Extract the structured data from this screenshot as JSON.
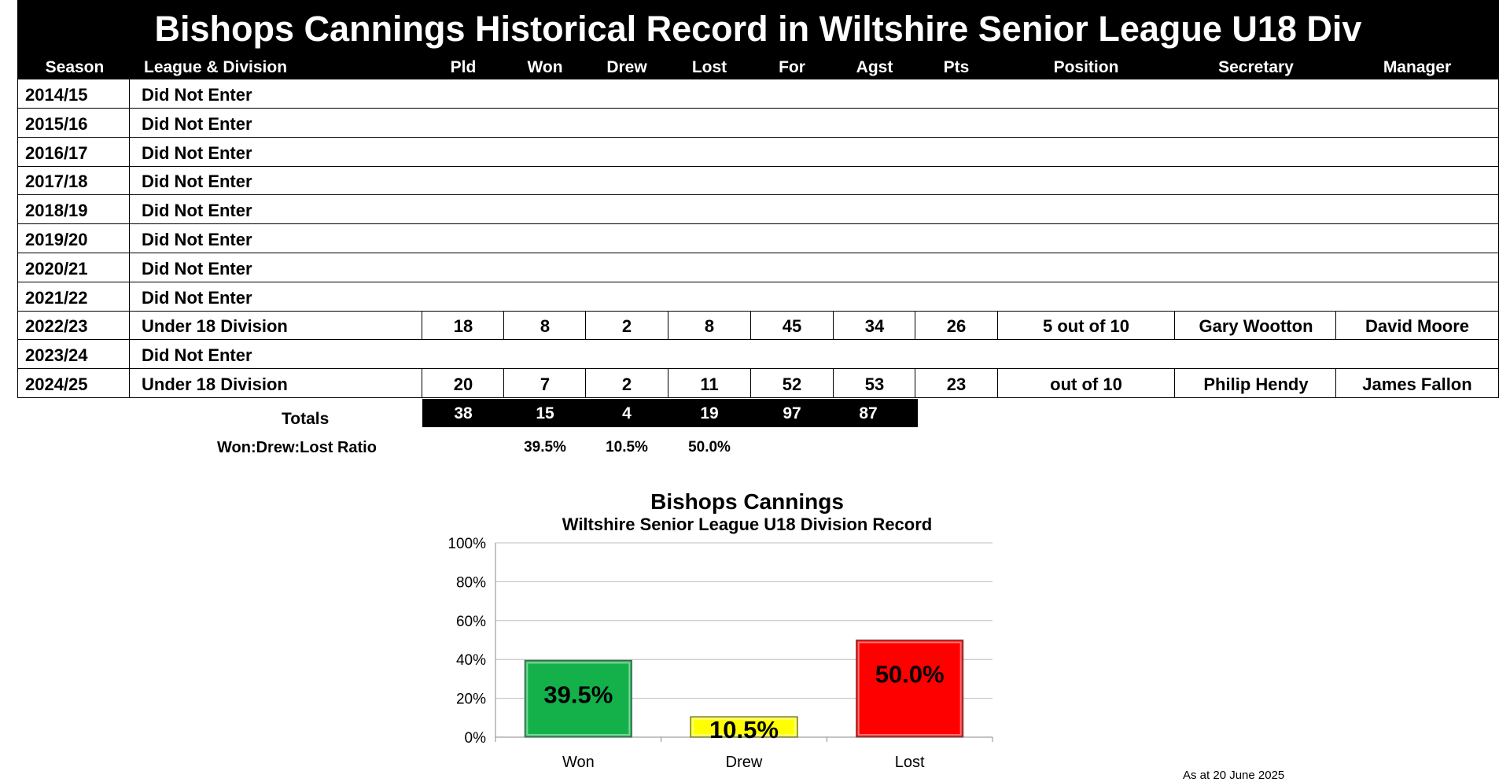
{
  "title": "Bishops Cannings Historical Record in Wiltshire Senior League U18 Div",
  "headers": {
    "season": "Season",
    "league": "League & Division",
    "pld": "Pld",
    "won": "Won",
    "drew": "Drew",
    "lost": "Lost",
    "for": "For",
    "agst": "Agst",
    "pts": "Pts",
    "position": "Position",
    "secretary": "Secretary",
    "manager": "Manager"
  },
  "rows": [
    {
      "season": "2014/15",
      "league": "Did Not Enter"
    },
    {
      "season": "2015/16",
      "league": "Did Not Enter"
    },
    {
      "season": "2016/17",
      "league": "Did Not Enter"
    },
    {
      "season": "2017/18",
      "league": "Did Not Enter"
    },
    {
      "season": "2018/19",
      "league": "Did Not Enter"
    },
    {
      "season": "2019/20",
      "league": "Did Not Enter"
    },
    {
      "season": "2020/21",
      "league": "Did Not Enter"
    },
    {
      "season": "2021/22",
      "league": "Did Not Enter"
    },
    {
      "season": "2022/23",
      "league": "Under 18 Division",
      "pld": "18",
      "won": "8",
      "drew": "2",
      "lost": "8",
      "for": "45",
      "agst": "34",
      "pts": "26",
      "position": "5 out of   10",
      "secretary": "Gary Wootton",
      "manager": "David Moore"
    },
    {
      "season": "2023/24",
      "league": "Did Not Enter"
    },
    {
      "season": "2024/25",
      "league": "Under 18 Division",
      "pld": "20",
      "won": "7",
      "drew": "2",
      "lost": "11",
      "for": "52",
      "agst": "53",
      "pts": "23",
      "position": "out of   10",
      "secretary": "Philip Hendy",
      "manager": "James Fallon"
    }
  ],
  "totals": {
    "label": "Totals",
    "pld": "38",
    "won": "15",
    "drew": "4",
    "lost": "19",
    "for": "97",
    "agst": "87"
  },
  "ratio": {
    "label": "Won:Drew:Lost Ratio",
    "won": "39.5%",
    "drew": "10.5%",
    "lost": "50.0%"
  },
  "chart_data": {
    "type": "bar",
    "title": "Bishops Cannings",
    "subtitle": "Wiltshire Senior League U18 Division Record",
    "categories": [
      "Won",
      "Drew",
      "Lost"
    ],
    "values": [
      39.5,
      10.5,
      50.0
    ],
    "data_labels": [
      "39.5%",
      "10.5%",
      "50.0%"
    ],
    "colors": [
      "#14b14b",
      "#ffff00",
      "#ff0000"
    ],
    "ylim": [
      0,
      100
    ],
    "yticks": [
      "0%",
      "20%",
      "40%",
      "60%",
      "80%",
      "100%"
    ],
    "grid": true,
    "legend": "none"
  },
  "footer": {
    "as_at": "As at 20 June 2025"
  }
}
